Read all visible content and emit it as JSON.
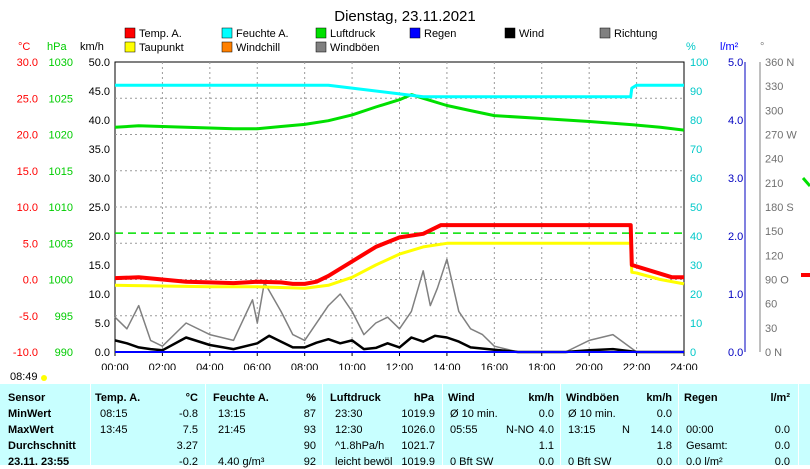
{
  "title": "Dienstag, 23.11.2021",
  "current_time": "08:49",
  "axes": {
    "temp_unit": "°C",
    "pressure_unit": "hPa",
    "wind_unit": "km/h",
    "humidity_unit": "%",
    "rain_unit": "l/m²",
    "direction_unit": "°",
    "temp_ticks": [
      "30.0",
      "25.0",
      "20.0",
      "15.0",
      "10.0",
      "5.0",
      "0.0",
      "-5.0",
      "-10.0"
    ],
    "pressure_ticks": [
      "1030",
      "1025",
      "1020",
      "1015",
      "1010",
      "1005",
      "1000",
      "995",
      "990"
    ],
    "wind_ticks": [
      "50.0",
      "45.0",
      "40.0",
      "35.0",
      "30.0",
      "25.0",
      "20.0",
      "15.0",
      "10.0",
      "5.0",
      "0.0"
    ],
    "humidity_ticks": [
      "100",
      "90",
      "80",
      "70",
      "60",
      "50",
      "40",
      "30",
      "20",
      "10",
      "0"
    ],
    "rain_ticks": [
      "5.0",
      "4.0",
      "3.0",
      "2.0",
      "1.0",
      "0.0"
    ],
    "direction_ticks": [
      "360 N",
      "330",
      "300",
      "270 W",
      "240",
      "210",
      "180 S",
      "150",
      "120",
      "90 O",
      "60",
      "30",
      "0   N"
    ],
    "time_ticks": [
      "00:00",
      "02:00",
      "04:00",
      "06:00",
      "08:00",
      "10:00",
      "12:00",
      "14:00",
      "16:00",
      "18:00",
      "20:00",
      "22:00",
      "24:00"
    ]
  },
  "legend": [
    {
      "label": "Temp. A.",
      "color": "#ff0000"
    },
    {
      "label": "Feuchte A.",
      "color": "#00ffff"
    },
    {
      "label": "Luftdruck",
      "color": "#00e000"
    },
    {
      "label": "Regen",
      "color": "#0000ff"
    },
    {
      "label": "Wind",
      "color": "#000000"
    },
    {
      "label": "Richtung",
      "color": "#808080"
    },
    {
      "label": "Taupunkt",
      "color": "#ffff00"
    },
    {
      "label": "Windchill",
      "color": "#ff8000"
    },
    {
      "label": "Windböen",
      "color": "#808080"
    }
  ],
  "chart_data": {
    "type": "line",
    "title": "Dienstag, 23.11.2021",
    "x_unit": "hour",
    "xlim": [
      0,
      24
    ],
    "grid": true,
    "series": [
      {
        "name": "Temp. A.",
        "axis": "°C",
        "color": "#ff0000",
        "x": [
          0,
          1,
          2,
          3,
          4,
          5,
          6,
          7,
          7.5,
          8,
          8.5,
          9,
          10,
          11,
          12,
          13,
          13.75,
          14,
          16,
          18,
          20,
          21.75,
          21.8,
          22,
          23,
          23.5,
          24
        ],
        "values": [
          0.2,
          0.3,
          0.0,
          -0.3,
          -0.4,
          -0.5,
          -0.3,
          -0.4,
          -0.6,
          -0.6,
          -0.3,
          0.5,
          2.5,
          4.5,
          5.8,
          6.3,
          7.5,
          7.5,
          7.5,
          7.5,
          7.5,
          7.5,
          2.0,
          1.8,
          0.8,
          0.3,
          0.3
        ]
      },
      {
        "name": "Taupunkt",
        "axis": "°C",
        "color": "#ffff00",
        "x": [
          0,
          2,
          4,
          6,
          7,
          8,
          9,
          10,
          11,
          12,
          13,
          14,
          16,
          18,
          20,
          21.75,
          21.8,
          22,
          23,
          24
        ],
        "values": [
          -0.8,
          -0.9,
          -1.0,
          -1.0,
          -1.1,
          -1.2,
          -0.8,
          0.3,
          2.0,
          3.5,
          4.5,
          5.0,
          5.0,
          5.0,
          5.0,
          5.0,
          1.0,
          0.9,
          0.0,
          -0.6
        ]
      },
      {
        "name": "Feuchte A.",
        "axis": "%",
        "color": "#00ffff",
        "x": [
          0,
          2,
          4,
          6,
          8,
          9,
          10,
          11,
          12,
          13,
          14,
          16,
          18,
          20,
          21.75,
          21.8,
          22,
          23,
          24
        ],
        "values": [
          92,
          92,
          92,
          92,
          92,
          92,
          91,
          90,
          89,
          88,
          88,
          88,
          88,
          88,
          88,
          91,
          92,
          92,
          92
        ]
      },
      {
        "name": "Luftdruck",
        "axis": "hPa",
        "color": "#00e000",
        "x": [
          0,
          1,
          2,
          3,
          4,
          5,
          6,
          7,
          8,
          9,
          10,
          11,
          12,
          12.5,
          13,
          14,
          15,
          16,
          18,
          20,
          22,
          23,
          24
        ],
        "values": [
          1021.0,
          1021.2,
          1021.1,
          1021.0,
          1020.9,
          1020.8,
          1020.8,
          1021.1,
          1021.4,
          1021.9,
          1022.7,
          1023.8,
          1024.8,
          1025.5,
          1025.0,
          1024.0,
          1023.3,
          1022.6,
          1022.2,
          1021.8,
          1021.3,
          1021.0,
          1020.6
        ]
      },
      {
        "name": "Wind",
        "axis": "km/h",
        "color": "#000000",
        "x": [
          0,
          0.5,
          1,
          1.5,
          2,
          3,
          4,
          5,
          6,
          6.5,
          7,
          7.5,
          8,
          8.5,
          9,
          9.5,
          10,
          10.5,
          11,
          11.5,
          12,
          12.5,
          13,
          13.5,
          14,
          14.5,
          15,
          16,
          17,
          18,
          19,
          20,
          21,
          22,
          24
        ],
        "values": [
          2.0,
          1.5,
          0.8,
          0.5,
          0.3,
          2.5,
          1.2,
          0.5,
          1.5,
          2.8,
          1.8,
          0.8,
          0.8,
          1.6,
          2.2,
          1.5,
          2.0,
          0.5,
          0.7,
          1.5,
          0.8,
          2.5,
          1.8,
          2.8,
          2.5,
          1.8,
          0.8,
          0.4,
          0,
          0,
          0,
          0.3,
          0.5,
          0,
          0
        ]
      },
      {
        "name": "Windböen",
        "axis": "km/h",
        "color": "#808080",
        "x": [
          0,
          0.5,
          1,
          1.5,
          2,
          3,
          4,
          5,
          5.8,
          6,
          6.3,
          7,
          7.5,
          8,
          9,
          9.5,
          10,
          10.5,
          11,
          11.5,
          12,
          12.5,
          13,
          13.3,
          13.6,
          14,
          14.5,
          15,
          15.5,
          16,
          17,
          18,
          19,
          20,
          21,
          22,
          24
        ],
        "values": [
          6,
          4,
          8,
          2,
          1,
          5,
          3,
          2,
          9,
          5,
          12,
          7,
          3,
          2,
          8,
          10,
          7,
          3,
          5,
          6,
          4,
          7,
          14,
          8,
          11,
          16,
          7,
          4,
          3,
          1,
          0,
          0,
          0,
          2,
          3,
          0,
          0
        ]
      },
      {
        "name": "Regen",
        "axis": "l/m²",
        "color": "#0000ff",
        "x": [
          0,
          24
        ],
        "values": [
          0,
          0
        ]
      }
    ],
    "reference_lines": [
      {
        "axis": "°C",
        "value": 6.4,
        "style": "dashed",
        "color": "#00e000"
      }
    ]
  },
  "table": {
    "headers": {
      "sensor": "Sensor",
      "temp": "Temp. A.",
      "temp_unit": "°C",
      "hum": "Feuchte A.",
      "hum_unit": "%",
      "press": "Luftdruck",
      "press_unit": "hPa",
      "wind": "Wind",
      "wind_unit": "km/h",
      "gust": "Windböen",
      "gust_unit": "km/h",
      "rain": "Regen",
      "rain_unit": "l/m²"
    },
    "rows": [
      {
        "label": "MinWert",
        "temp_t": "08:15",
        "temp_v": "-0.8",
        "hum_t": "13:15",
        "hum_v": "87",
        "press_t": "23:30",
        "press_v": "1019.9",
        "wind_t": "Ø 10 min.",
        "wind_v": "0.0",
        "gust_t": "Ø 10 min.",
        "gust_v": "0.0",
        "rain_t": "",
        "rain_v": ""
      },
      {
        "label": "MaxWert",
        "temp_t": "13:45",
        "temp_v": "7.5",
        "hum_t": "21:45",
        "hum_v": "93",
        "press_t": "12:30",
        "press_v": "1026.0",
        "wind_t": "05:55",
        "wind_d": "N-NO",
        "wind_v": "4.0",
        "gust_t": "13:15",
        "gust_d": "N",
        "gust_v": "14.0",
        "rain_t": "00:00",
        "rain_v": "0.0"
      },
      {
        "label": "Durchschnitt",
        "temp_t": "",
        "temp_v": "3.27",
        "hum_t": "",
        "hum_v": "90",
        "press_t": "^1.8hPa/h",
        "press_v": "1021.7",
        "wind_t": "",
        "wind_v": "1.1",
        "gust_t": "",
        "gust_v": "1.8",
        "rain_t": "Gesamt:",
        "rain_v": "0.0"
      },
      {
        "label": "23.11. 23:55",
        "temp_t": "",
        "temp_v": "-0.2",
        "hum_t": "4.40 g/m³",
        "hum_v": "92",
        "press_t": "leicht bewöl",
        "press_v": "1019.9",
        "wind_t": "0 Bft SW",
        "wind_v": "0.0",
        "gust_t": "0 Bft SW",
        "gust_v": "0.0",
        "rain_t": "0.0 l/m²",
        "rain_v": "0.0"
      }
    ]
  }
}
